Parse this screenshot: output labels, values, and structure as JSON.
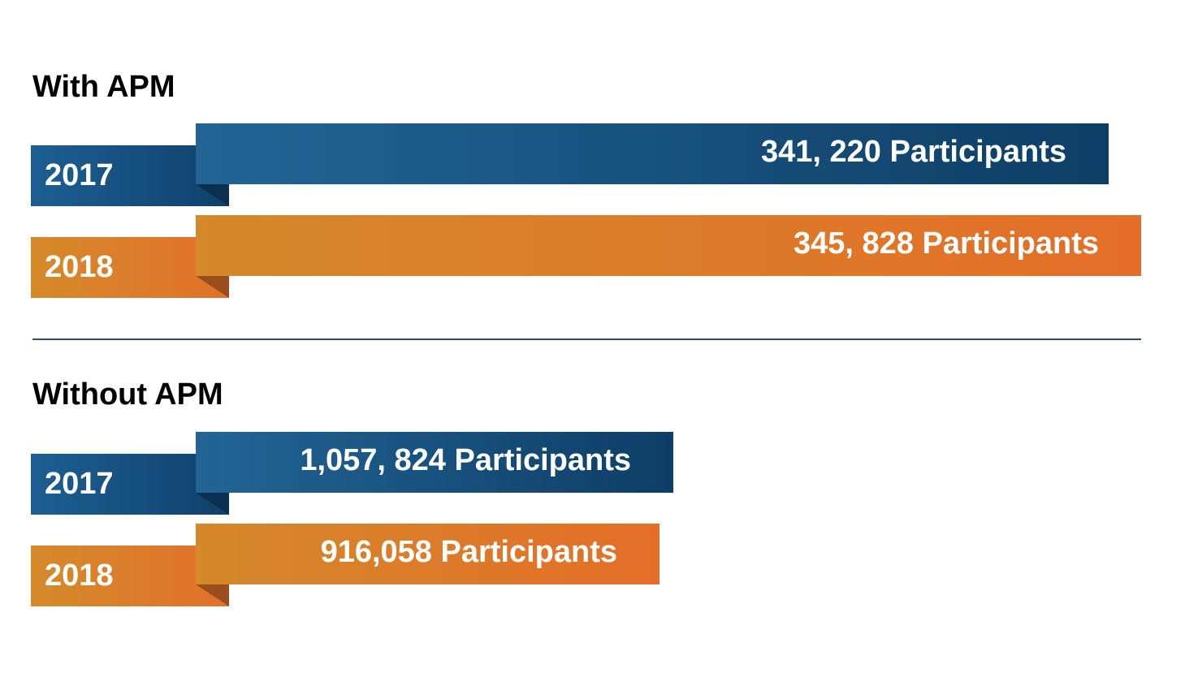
{
  "sections": [
    {
      "title": "With APM",
      "rows": [
        {
          "year": "2017",
          "label": "341, 220 Participants",
          "value": 341220,
          "color": "#1d5f93"
        },
        {
          "year": "2018",
          "label": "345, 828 Participants",
          "value": 345828,
          "color": "#e2702a"
        }
      ]
    },
    {
      "title": "Without APM",
      "rows": [
        {
          "year": "2017",
          "label": "1,057, 824 Participants",
          "value": 1057824,
          "color": "#1d5f93"
        },
        {
          "year": "2018",
          "label": "916,058 Participants",
          "value": 916058,
          "color": "#e2702a"
        }
      ]
    }
  ],
  "chart_data": {
    "type": "bar",
    "categories": [
      "2017",
      "2018"
    ],
    "groups": [
      {
        "title": "With APM",
        "values": [
          341220,
          345828
        ],
        "labels": [
          "341, 220 Participants",
          "345, 828 Participants"
        ]
      },
      {
        "title": "Without APM",
        "values": [
          1057824,
          916058
        ],
        "labels": [
          "1,057, 824 Participants",
          "916,058 Participants"
        ]
      }
    ],
    "colors": {
      "2017": "#1d5f93",
      "2018": "#e2702a"
    },
    "grid": false
  }
}
